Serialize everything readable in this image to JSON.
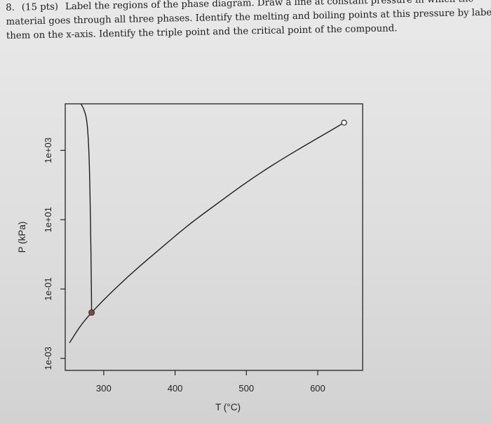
{
  "question": {
    "number": "8.",
    "points": "(15 pts)",
    "lines": [
      "Label the regions of the phase diagram. Draw a line at constant pressure in which the",
      "material goes through all three phases. Identify the melting and boiling points at this pressure by labeling",
      "them on the x-axis. Identify the triple point and the critical point of the compound."
    ]
  },
  "chart_data": {
    "type": "line",
    "title": "",
    "xlabel": "T (°C)",
    "ylabel": "P (kPa)",
    "y_scale": "log",
    "xlim": [
      246,
      663
    ],
    "ylim": [
      0.00045,
      22000
    ],
    "x_tick_labels": [
      "300",
      "400",
      "500",
      "600"
    ],
    "x_ticks": [
      300,
      400,
      500,
      600
    ],
    "y_tick_labels": [
      "1e-03",
      "1e-01",
      "1e+01",
      "1e+03"
    ],
    "y_ticks": [
      0.001,
      0.1,
      10,
      1000
    ],
    "series": [
      {
        "role": "sublimation/vaporization curve",
        "x": [
          252,
          270,
          300,
          340,
          380,
          420,
          460,
          500,
          540,
          580,
          620,
          637
        ],
        "y": [
          0.0028,
          0.0108,
          0.05,
          0.3,
          1.5,
          7.5,
          30,
          120,
          420,
          1300,
          3900,
          6300
        ]
      },
      {
        "role": "fusion curve",
        "x": [
          283,
          282.4,
          281.4,
          280.2,
          278.6,
          276.2,
          272.5,
          268
        ],
        "y": [
          0.021,
          0.4,
          10,
          200,
          2000,
          8000,
          15000,
          22000
        ]
      }
    ],
    "points": {
      "triple_point": {
        "x": 283,
        "y": 0.021
      },
      "critical_point": {
        "x": 637,
        "y": 6300
      }
    },
    "colors": {
      "curve": "#1e1e1e",
      "triple_point_fill": "#7a4a48",
      "critical_point_fill": "#ffffff",
      "frame": "#222222"
    }
  }
}
